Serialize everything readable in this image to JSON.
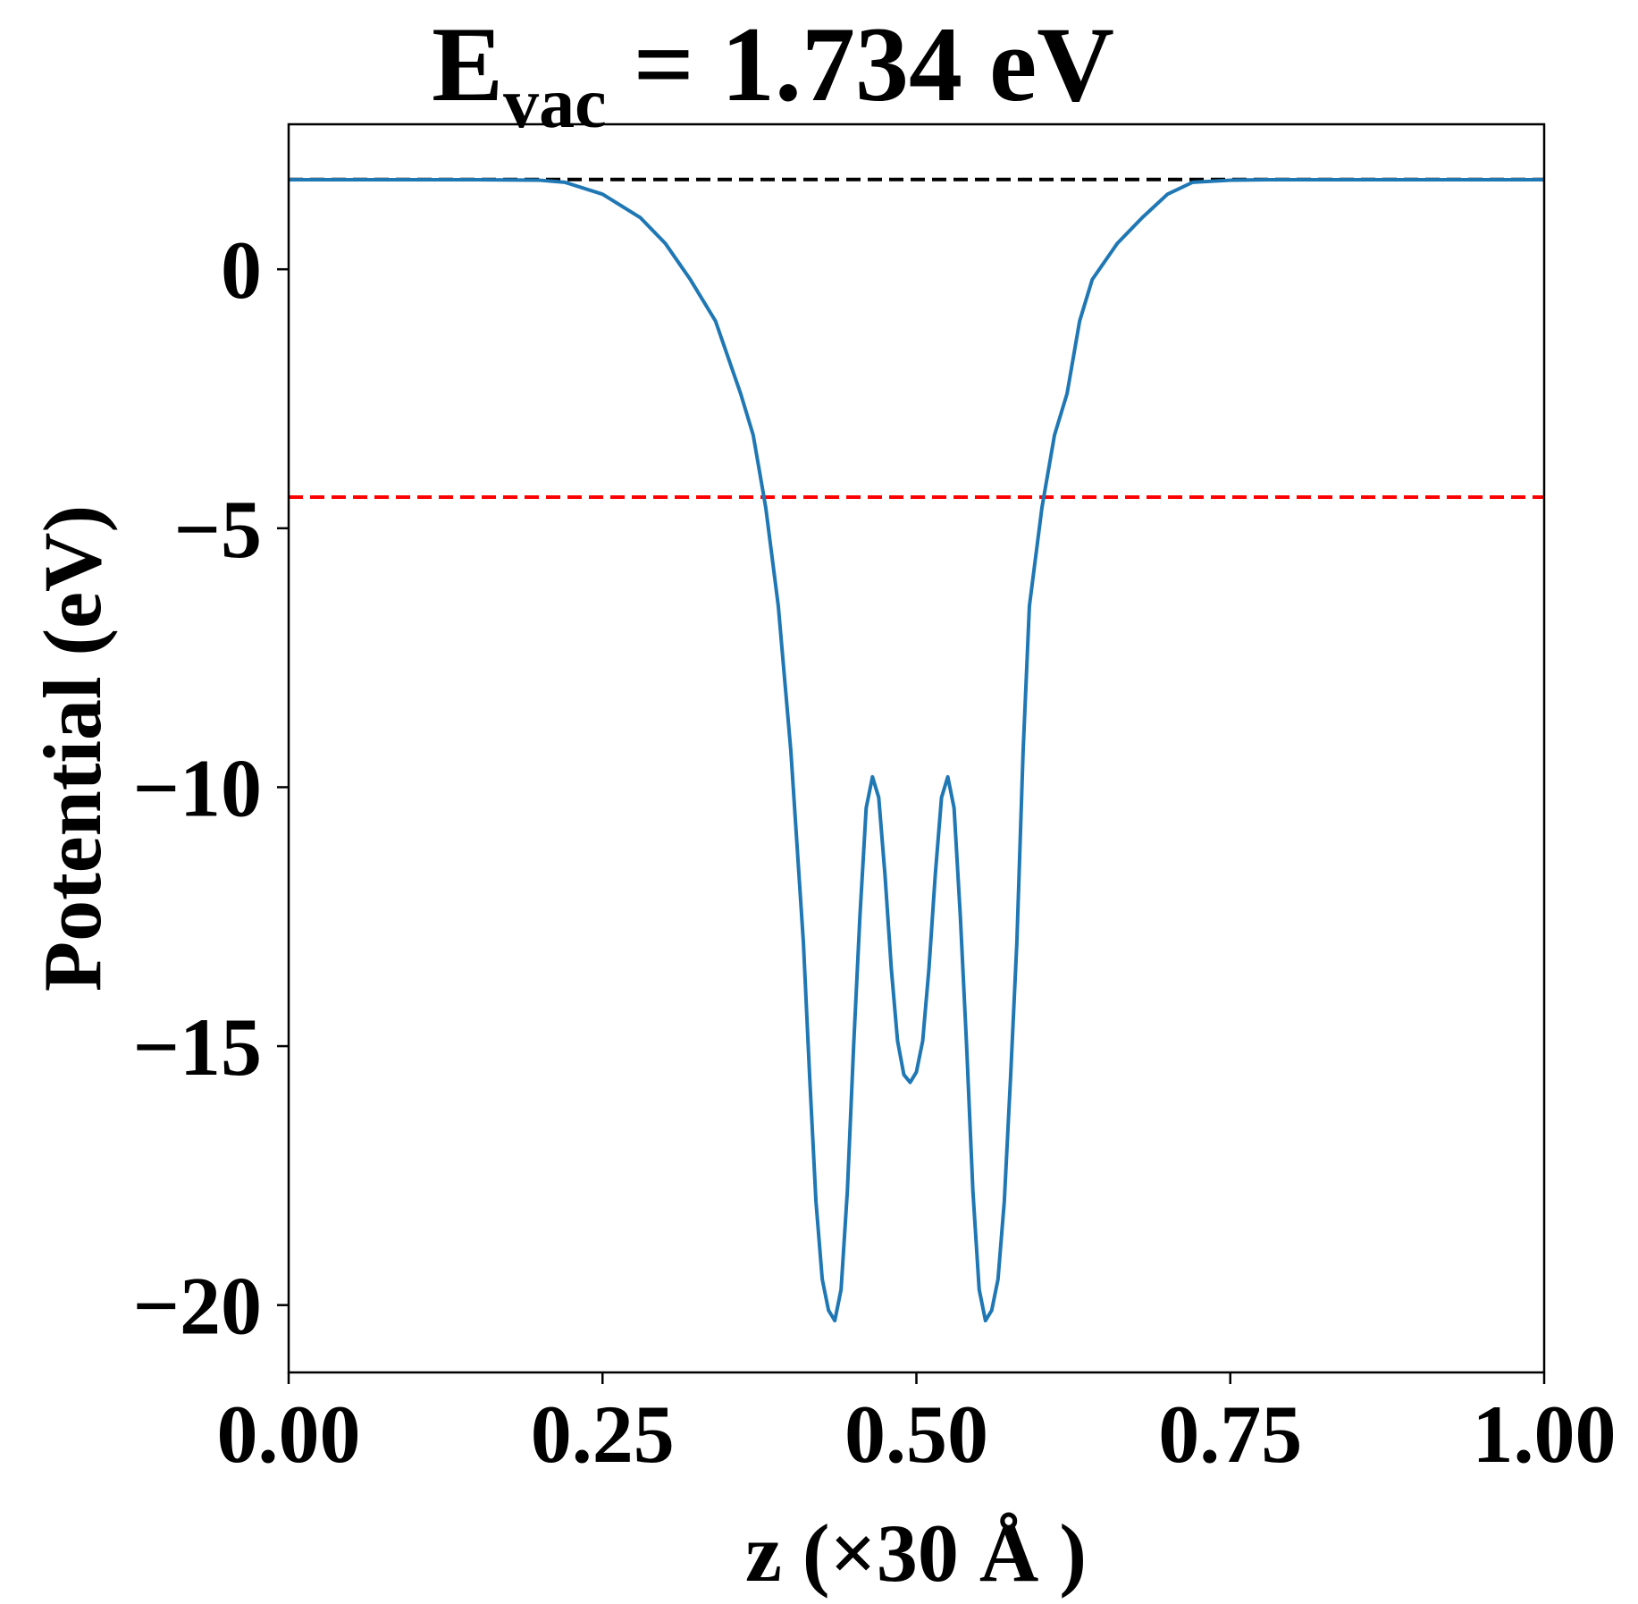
{
  "chart_data": {
    "type": "line",
    "title": {
      "main": "E",
      "subscript": "vac",
      "rest": " = 1.734 eV"
    },
    "xlabel": "z (×30 Å )",
    "ylabel": "Potential (eV)",
    "xlim": [
      0,
      1
    ],
    "ylim": [
      -21.3,
      2.8
    ],
    "xticks": [
      0,
      0.25,
      0.5,
      0.75,
      1.0
    ],
    "xtick_labels": [
      "0.00",
      "0.25",
      "0.50",
      "0.75",
      "1.00"
    ],
    "yticks": [
      0,
      -5,
      -10,
      -15,
      -20
    ],
    "ytick_labels": [
      "0",
      "−5",
      "−10",
      "−15",
      "−20"
    ],
    "grid": false,
    "legend": "none",
    "reference_lines": [
      {
        "y": 1.734,
        "style": "dashed",
        "color": "#000000"
      },
      {
        "y": -4.4,
        "style": "dashed",
        "color": "#ff0000"
      }
    ],
    "series": [
      {
        "color": "#1f77b4",
        "x": [
          0.0,
          0.05,
          0.1,
          0.15,
          0.2,
          0.22,
          0.25,
          0.28,
          0.3,
          0.32,
          0.34,
          0.36,
          0.37,
          0.38,
          0.39,
          0.4,
          0.41,
          0.415,
          0.42,
          0.425,
          0.43,
          0.435,
          0.44,
          0.445,
          0.45,
          0.455,
          0.46,
          0.465,
          0.47,
          0.475,
          0.48,
          0.485,
          0.49,
          0.495,
          0.5,
          0.505,
          0.51,
          0.515,
          0.52,
          0.525,
          0.53,
          0.535,
          0.54,
          0.545,
          0.55,
          0.555,
          0.56,
          0.565,
          0.57,
          0.575,
          0.58,
          0.585,
          0.59,
          0.6,
          0.61,
          0.62,
          0.63,
          0.64,
          0.66,
          0.68,
          0.7,
          0.72,
          0.75,
          0.78,
          0.8,
          0.85,
          0.9,
          0.95,
          1.0
        ],
        "y": [
          1.73,
          1.73,
          1.73,
          1.73,
          1.72,
          1.68,
          1.45,
          1.0,
          0.5,
          -0.2,
          -1.0,
          -2.4,
          -3.2,
          -4.6,
          -6.5,
          -9.3,
          -13.0,
          -15.6,
          -18.0,
          -19.5,
          -20.1,
          -20.3,
          -19.7,
          -17.8,
          -15.0,
          -12.5,
          -10.4,
          -9.8,
          -10.2,
          -11.7,
          -13.5,
          -14.9,
          -15.55,
          -15.7,
          -15.5,
          -14.9,
          -13.5,
          -11.7,
          -10.2,
          -9.8,
          -10.4,
          -12.5,
          -15.0,
          -17.8,
          -19.7,
          -20.3,
          -20.1,
          -19.5,
          -18.0,
          -15.6,
          -13.0,
          -9.3,
          -6.5,
          -4.6,
          -3.2,
          -2.4,
          -1.0,
          -0.2,
          0.5,
          1.0,
          1.45,
          1.68,
          1.72,
          1.73,
          1.73,
          1.73,
          1.73,
          1.73,
          1.73
        ]
      }
    ]
  }
}
